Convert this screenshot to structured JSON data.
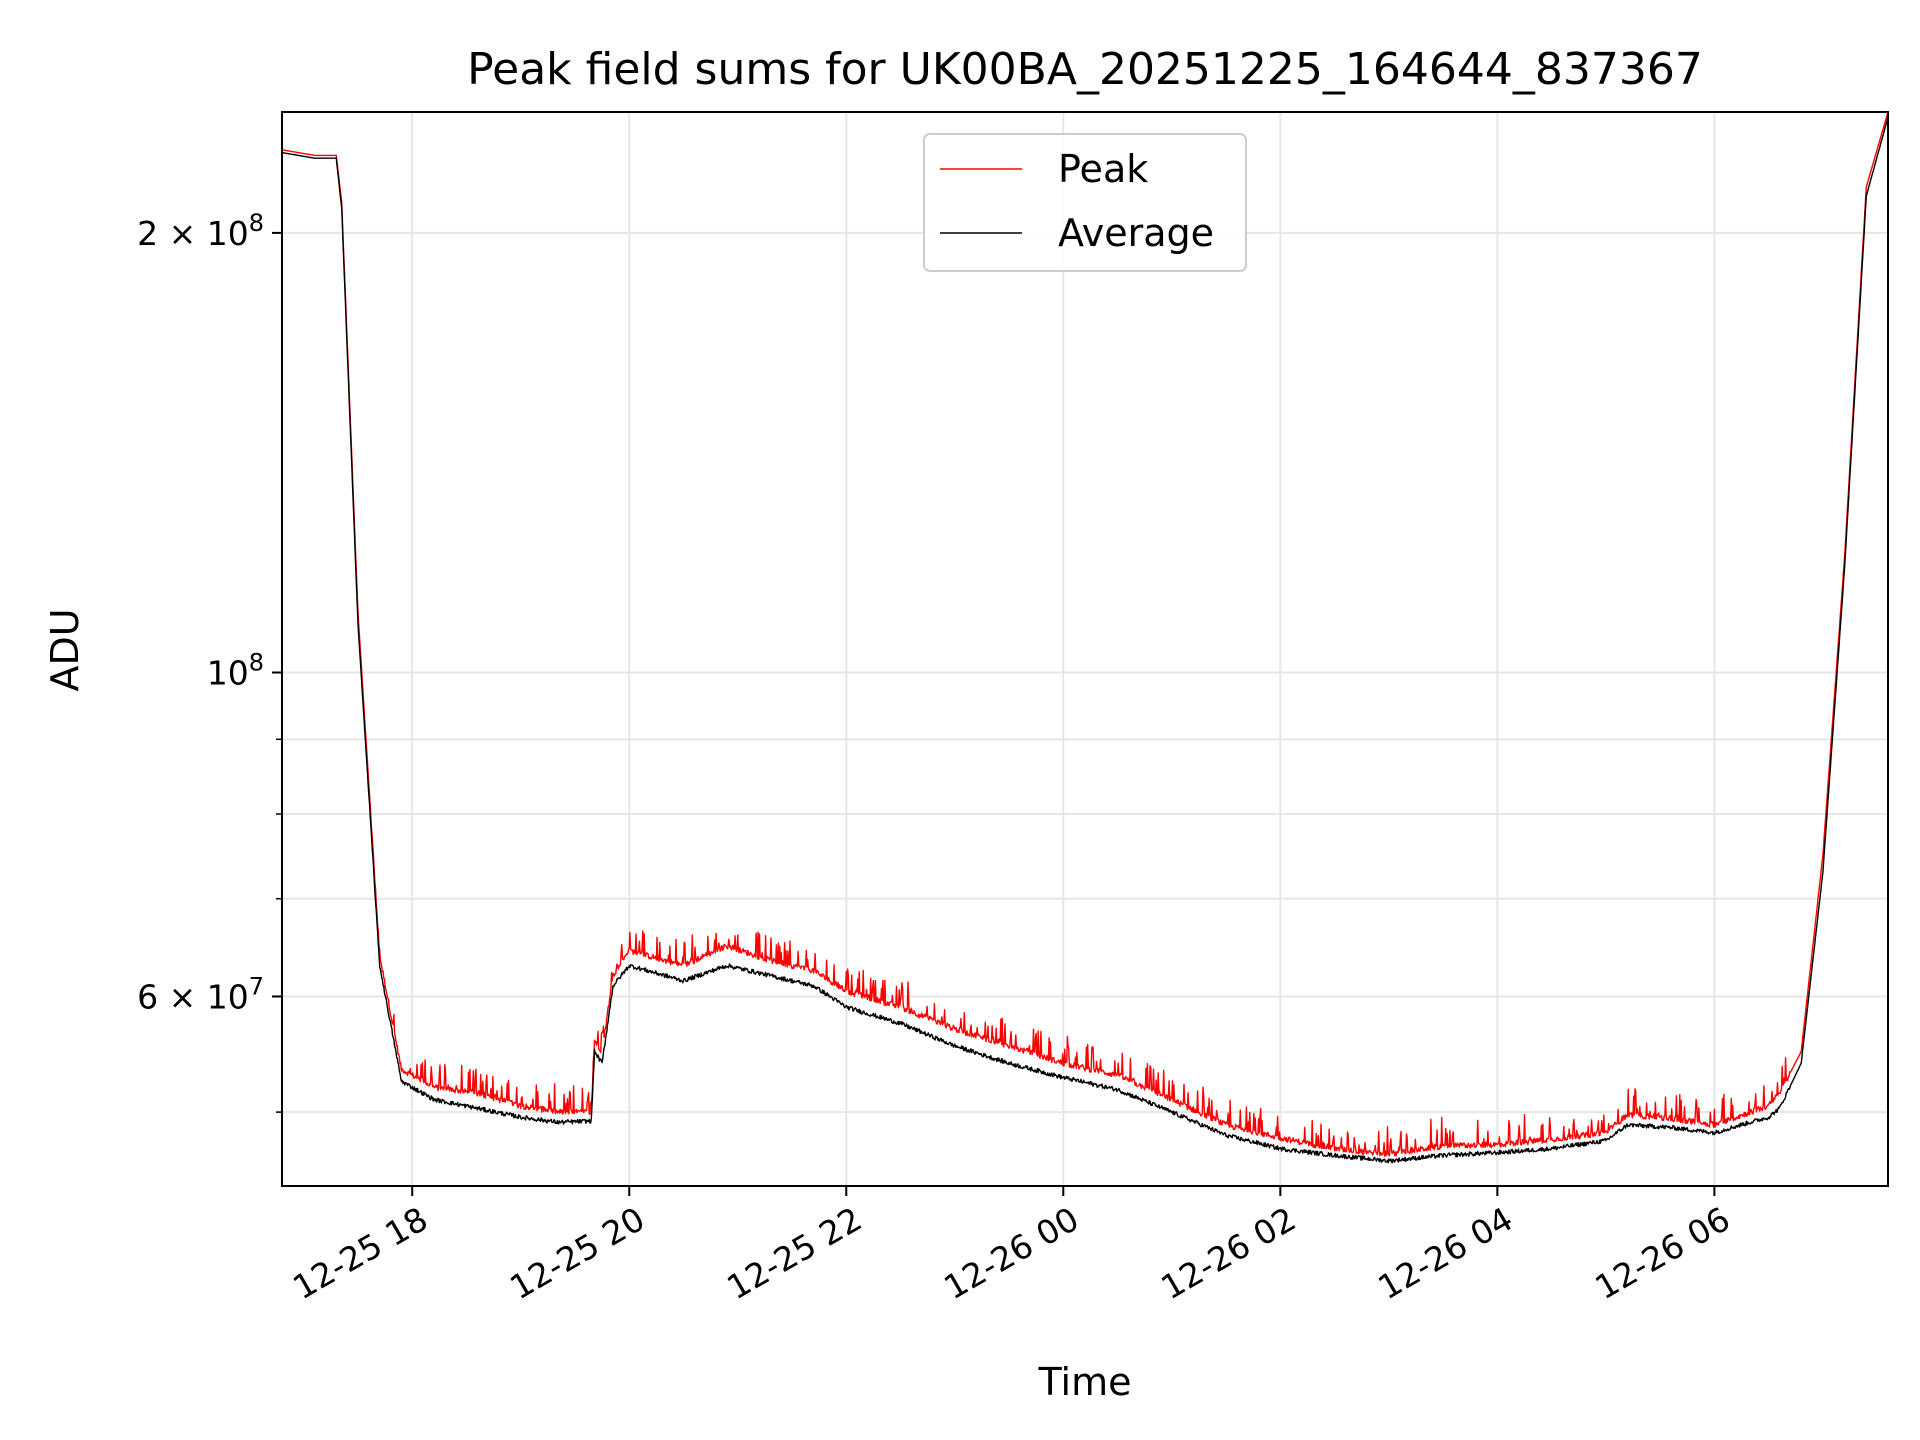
{
  "chart_data": {
    "type": "line",
    "title": "Peak field sums for UK00BA_20251225_164644_837367",
    "xlabel": "Time",
    "ylabel": "ADU",
    "yscale": "log",
    "ylim": [
      44500000,
      242000000
    ],
    "xlim_hours": [
      16.8,
      31.6
    ],
    "x_ticks": [
      {
        "hours": 18,
        "label": "12-25 18"
      },
      {
        "hours": 20,
        "label": "12-25 20"
      },
      {
        "hours": 22,
        "label": "12-25 22"
      },
      {
        "hours": 24,
        "label": "12-26 00"
      },
      {
        "hours": 26,
        "label": "12-26 02"
      },
      {
        "hours": 28,
        "label": "12-26 04"
      },
      {
        "hours": 30,
        "label": "12-26 06"
      }
    ],
    "y_major_ticks": [
      {
        "value": 200000000,
        "base": "2 × 10",
        "exp": "8"
      },
      {
        "value": 100000000,
        "base": "10",
        "exp": "8"
      },
      {
        "value": 60000000,
        "base": "6 × 10",
        "exp": "7"
      }
    ],
    "y_minor_ticks": [
      50000000,
      70000000,
      80000000,
      90000000
    ],
    "grid": true,
    "legend_position": "top-center",
    "series": [
      {
        "name": "Peak",
        "color": "#ff0000",
        "x_hours": [
          16.8,
          17.1,
          17.3,
          17.35,
          17.5,
          17.7,
          17.9,
          18.2,
          18.6,
          19.0,
          19.35,
          19.65,
          19.68,
          19.75,
          19.85,
          20.0,
          20.5,
          20.9,
          21.3,
          21.7,
          22.0,
          22.5,
          23.0,
          23.5,
          24.0,
          24.5,
          25.0,
          25.5,
          26.0,
          26.5,
          27.0,
          27.5,
          28.0,
          28.5,
          29.0,
          29.2,
          29.6,
          30.0,
          30.2,
          30.5,
          30.6,
          30.8,
          31.0,
          31.2,
          31.4,
          31.6
        ],
        "values": [
          228000000,
          226000000,
          226000000,
          210000000,
          110000000,
          64000000,
          53500000,
          52000000,
          51500000,
          50500000,
          50000000,
          50000000,
          56000000,
          55000000,
          62000000,
          64500000,
          63000000,
          65000000,
          63500000,
          62500000,
          60500000,
          59000000,
          57000000,
          55500000,
          54000000,
          53000000,
          51000000,
          49000000,
          48000000,
          47200000,
          46800000,
          47400000,
          47500000,
          47900000,
          48400000,
          49800000,
          49500000,
          49000000,
          49600000,
          50500000,
          51500000,
          55000000,
          75000000,
          120000000,
          215000000,
          242000000
        ]
      },
      {
        "name": "Average",
        "color": "#000000",
        "x_hours": [
          16.8,
          17.1,
          17.3,
          17.35,
          17.5,
          17.7,
          17.9,
          18.2,
          18.6,
          19.0,
          19.35,
          19.65,
          19.68,
          19.75,
          19.85,
          20.0,
          20.5,
          20.9,
          21.3,
          21.7,
          22.0,
          22.5,
          23.0,
          23.5,
          24.0,
          24.5,
          25.0,
          25.5,
          26.0,
          26.5,
          27.0,
          27.5,
          28.0,
          28.5,
          29.0,
          29.2,
          29.6,
          30.0,
          30.2,
          30.5,
          30.6,
          30.8,
          31.0,
          31.2,
          31.4,
          31.6
        ],
        "values": [
          227000000,
          225000000,
          225000000,
          208000000,
          108000000,
          63000000,
          52500000,
          51000000,
          50300000,
          49600000,
          49200000,
          49300000,
          55000000,
          54000000,
          61000000,
          63000000,
          61500000,
          63000000,
          62000000,
          61000000,
          59000000,
          57500000,
          55500000,
          54000000,
          52800000,
          51800000,
          50000000,
          48200000,
          47200000,
          46700000,
          46300000,
          46700000,
          46900000,
          47200000,
          47800000,
          49000000,
          48800000,
          48400000,
          48900000,
          49600000,
          50300000,
          54000000,
          73000000,
          118000000,
          212000000,
          240000000
        ]
      }
    ]
  }
}
